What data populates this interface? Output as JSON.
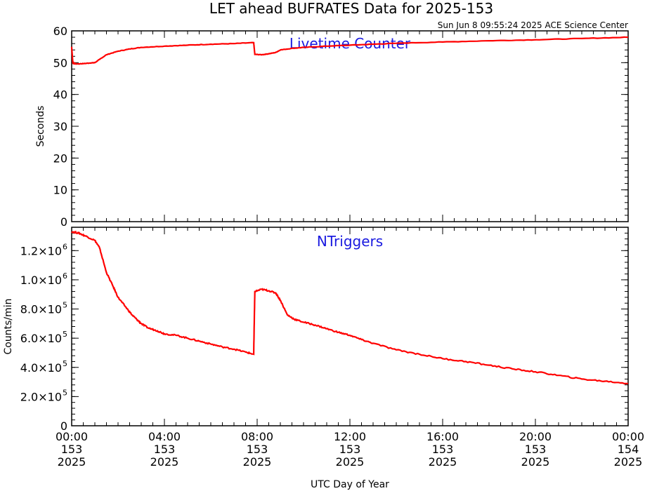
{
  "header": {
    "title": "LET ahead BUFRATES Data for 2025-153",
    "subtitle": "Sun Jun  8 09:55:24 2025 ACE Science Center"
  },
  "colors": {
    "series": "#ff0000",
    "panel_label": "#1a1ae0",
    "axes": "#000000"
  },
  "chart_data": [
    {
      "type": "line",
      "label": "Livetime Counter",
      "ylabel": "Seconds",
      "xlabel": "",
      "xlim": [
        0,
        24
      ],
      "ylim": [
        0,
        60
      ],
      "y_ticks": [
        "0",
        "10",
        "20",
        "30",
        "40",
        "50",
        "60"
      ],
      "y_tick_values": [
        0,
        10,
        20,
        30,
        40,
        50,
        60
      ],
      "series": [
        {
          "x": [
            0.0,
            0.05,
            0.1,
            0.2,
            0.5,
            0.8,
            1.0,
            1.2,
            1.5,
            2.0,
            2.5,
            3.0,
            4.0,
            5.0,
            6.0,
            7.0,
            7.85,
            7.9,
            8.2,
            8.5,
            8.8,
            9.0,
            9.5,
            10.0,
            11.0,
            12.0,
            13.0,
            14.0,
            16.0,
            18.0,
            20.0,
            22.0,
            24.0
          ],
          "y": [
            55.0,
            50.0,
            49.8,
            49.6,
            49.7,
            49.9,
            50.0,
            51.0,
            52.5,
            53.6,
            54.3,
            54.8,
            55.2,
            55.5,
            55.8,
            56.0,
            56.3,
            52.6,
            52.5,
            52.8,
            53.2,
            54.0,
            54.5,
            54.8,
            55.2,
            55.5,
            55.8,
            56.1,
            56.5,
            56.9,
            57.2,
            57.6,
            58.0
          ]
        }
      ]
    },
    {
      "type": "line",
      "label": "NTriggers",
      "ylabel": "Counts/min",
      "xlabel": "UTC Day of Year",
      "xlim": [
        0,
        24
      ],
      "ylim": [
        0,
        1360000
      ],
      "y_tick_values": [
        0,
        200000,
        400000,
        600000,
        800000,
        1000000,
        1200000
      ],
      "y_ticks": [
        {
          "mantissa": "0",
          "exp": ""
        },
        {
          "mantissa": "2.0×10",
          "exp": "5"
        },
        {
          "mantissa": "4.0×10",
          "exp": "5"
        },
        {
          "mantissa": "6.0×10",
          "exp": "5"
        },
        {
          "mantissa": "8.0×10",
          "exp": "5"
        },
        {
          "mantissa": "1.0×10",
          "exp": "6"
        },
        {
          "mantissa": "1.2×10",
          "exp": "6"
        }
      ],
      "series": [
        {
          "x": [
            0.0,
            0.3,
            0.6,
            1.0,
            1.2,
            1.5,
            1.8,
            2.0,
            2.3,
            2.6,
            2.8,
            3.0,
            3.3,
            3.7,
            4.0,
            4.5,
            5.0,
            5.5,
            6.0,
            6.5,
            7.0,
            7.5,
            7.85,
            7.9,
            8.2,
            8.5,
            8.8,
            9.0,
            9.3,
            9.6,
            10.0,
            10.5,
            11.0,
            11.5,
            12.0,
            12.5,
            13.0,
            14.0,
            15.0,
            16.0,
            17.0,
            18.0,
            19.0,
            20.0,
            21.0,
            22.0,
            23.0,
            24.0
          ],
          "y": [
            1330000,
            1320000,
            1300000,
            1270000,
            1220000,
            1050000,
            950000,
            880000,
            820000,
            760000,
            730000,
            700000,
            670000,
            650000,
            630000,
            620000,
            600000,
            580000,
            560000,
            540000,
            525000,
            505000,
            490000,
            920000,
            935000,
            925000,
            910000,
            860000,
            760000,
            730000,
            710000,
            690000,
            665000,
            640000,
            620000,
            590000,
            565000,
            520000,
            490000,
            460000,
            440000,
            415000,
            390000,
            370000,
            345000,
            320000,
            305000,
            290000
          ]
        }
      ]
    }
  ],
  "x_axis": {
    "ticks": [
      {
        "time": "00:00",
        "doy": "153",
        "year": "2025"
      },
      {
        "time": "04:00",
        "doy": "153",
        "year": "2025"
      },
      {
        "time": "08:00",
        "doy": "153",
        "year": "2025"
      },
      {
        "time": "12:00",
        "doy": "153",
        "year": "2025"
      },
      {
        "time": "16:00",
        "doy": "153",
        "year": "2025"
      },
      {
        "time": "20:00",
        "doy": "153",
        "year": "2025"
      },
      {
        "time": "00:00",
        "doy": "154",
        "year": "2025"
      }
    ],
    "tick_hours": [
      0,
      4,
      8,
      12,
      16,
      20,
      24
    ],
    "label": "UTC Day of Year"
  }
}
